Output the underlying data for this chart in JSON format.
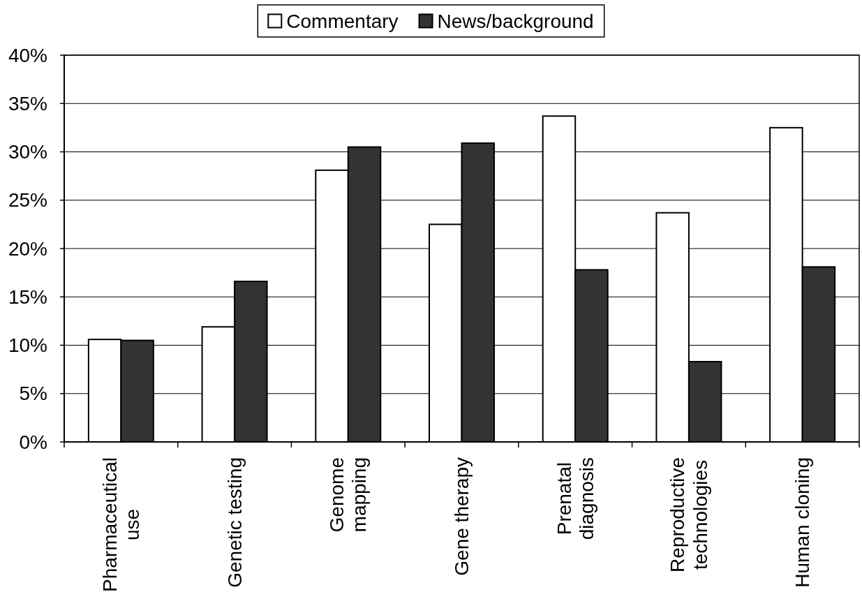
{
  "chart_data": {
    "type": "bar",
    "categories": [
      "Pharmaceutical use",
      "Genetic testing",
      "Genome mapping",
      "Gene therapy",
      "Prenatal diagnosis",
      "Reproductive technologies",
      "Human cloning"
    ],
    "series": [
      {
        "name": "Commentary",
        "color": "#ffffff",
        "values": [
          10.6,
          11.9,
          28.1,
          22.5,
          33.7,
          23.7,
          32.5
        ]
      },
      {
        "name": "News/background",
        "color": "#333333",
        "values": [
          10.5,
          16.6,
          30.5,
          30.9,
          17.8,
          8.3,
          18.1
        ]
      }
    ],
    "ylim": [
      0,
      40
    ],
    "yticks": [
      {
        "value": 0,
        "label": "0%"
      },
      {
        "value": 5,
        "label": "5%"
      },
      {
        "value": 10,
        "label": "10%"
      },
      {
        "value": 15,
        "label": "15%"
      },
      {
        "value": 20,
        "label": "20%"
      },
      {
        "value": 25,
        "label": "25%"
      },
      {
        "value": 30,
        "label": "30%"
      },
      {
        "value": 35,
        "label": "35%"
      },
      {
        "value": 40,
        "label": "40%"
      }
    ],
    "grid": "y",
    "legend": "top"
  }
}
